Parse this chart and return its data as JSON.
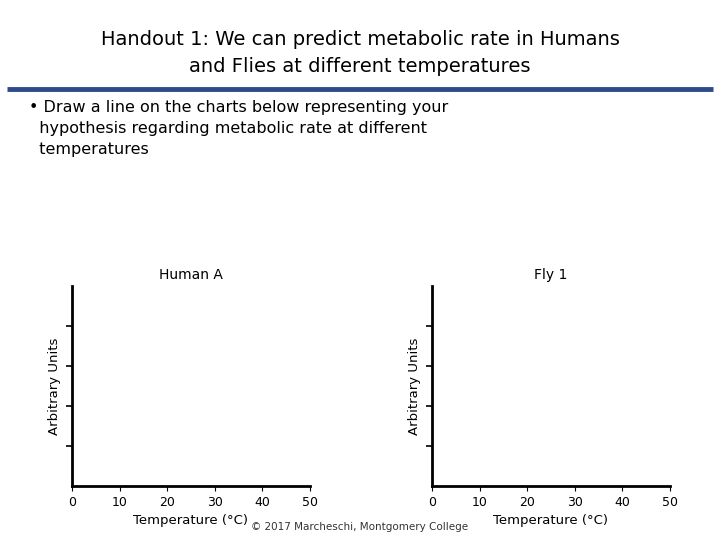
{
  "title_line1": "Handout 1: We can predict metabolic rate in Humans",
  "title_line2": "and Flies at different temperatures",
  "title_fontsize": 14,
  "title_color": "#000000",
  "divider_color": "#2E4A8B",
  "bullet_text": "• Draw a line on the charts below representing your\n  hypothesis regarding metabolic rate at different\n  temperatures",
  "bullet_fontsize": 11.5,
  "chart1_title": "Human A",
  "chart2_title": "Fly 1",
  "xlabel": "Temperature (°C)",
  "ylabel": "Arbitrary Units",
  "xmin": 0,
  "xmax": 50,
  "xticks": [
    0,
    10,
    20,
    30,
    40,
    50
  ],
  "background_color": "#FFFFFF",
  "axis_fontsize": 9.5,
  "chart_title_fontsize": 10,
  "footer_text": "© 2017 Marcheschi, Montgomery College",
  "footer_fontsize": 7.5
}
